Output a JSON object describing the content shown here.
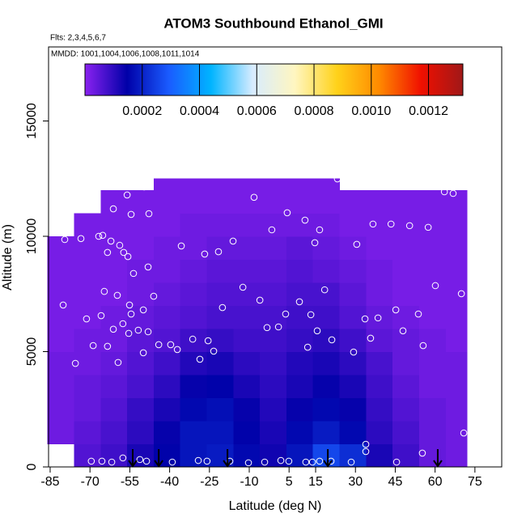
{
  "chart_data": {
    "type": "curtain",
    "title": "ATOM3 Southbound Ethanol_GMI",
    "subtitle": "Flts: 2,3,4,5,6,7",
    "annotation": "MMDD: 1001,1004,1006,1008,1011,1014",
    "x_label": "Latitude (deg N)",
    "y_label": "Altitude (m)",
    "xlim": [
      -85.6,
      85.1
    ],
    "ylim": [
      0,
      18210
    ],
    "xticks": [
      -85,
      -70,
      -55,
      -40,
      -25,
      -10,
      5,
      15,
      30,
      45,
      60,
      75
    ],
    "yticks": [
      0,
      5000,
      10000,
      15000
    ],
    "clim": [
      0,
      0.00132
    ],
    "cticks": [
      0.0002,
      0.0004,
      0.0006,
      0.0008,
      {
        "value": 0.001,
        "label": "0.0010"
      },
      0.0012
    ],
    "colormap": [
      "#8a22f0",
      "#0000a8",
      "#1a5cff",
      "#00b4ff",
      "#d8ecff",
      "#fff6c0",
      "#ffd21a",
      "#ff8a00",
      "#f01000",
      "#a01818"
    ],
    "lat_edges": [
      -86,
      -76,
      -66,
      -56,
      -46,
      -36,
      -26,
      -16,
      -6,
      4,
      14,
      24,
      34,
      44,
      54,
      64,
      72
    ],
    "alt_edges": [
      0,
      1000,
      2000,
      3000,
      4000,
      5000,
      6000,
      7000,
      8000,
      9000,
      10000,
      11000,
      12000,
      12500
    ],
    "z": [
      [
        null,
        6e-05,
        8e-05,
        0.00012,
        0.00015,
        0.00018,
        0.00019,
        0.00016,
        0.00013,
        0.00018,
        0.00026,
        0.00022,
        0.00012,
        8e-05,
        4e-05,
        3e-05
      ],
      [
        3e-05,
        5e-05,
        7e-05,
        0.0001,
        0.00014,
        0.00018,
        0.00018,
        0.00015,
        0.00012,
        0.00016,
        0.00019,
        0.00016,
        0.0001,
        7e-05,
        4e-05,
        3e-05
      ],
      [
        3e-05,
        4e-05,
        6e-05,
        9e-05,
        0.00012,
        0.00016,
        0.00017,
        0.00014,
        0.00011,
        0.00014,
        0.00016,
        0.00014,
        9e-05,
        6e-05,
        4e-05,
        3e-05
      ],
      [
        3e-05,
        4e-05,
        5e-05,
        7e-05,
        0.0001,
        0.00014,
        0.00015,
        0.00012,
        0.0001,
        0.00012,
        0.00014,
        0.00012,
        8e-05,
        5e-05,
        3e-05,
        3e-05
      ],
      [
        3e-05,
        3e-05,
        4e-05,
        6e-05,
        8e-05,
        0.00011,
        0.00012,
        0.0001,
        9e-05,
        0.00011,
        0.00012,
        0.0001,
        7e-05,
        4e-05,
        3e-05,
        3e-05
      ],
      [
        2e-05,
        3e-05,
        3e-05,
        5e-05,
        6e-05,
        8e-05,
        9e-05,
        8e-05,
        8e-05,
        9e-05,
        0.0001,
        8e-05,
        5e-05,
        4e-05,
        3e-05,
        2e-05
      ],
      [
        2e-05,
        2e-05,
        3e-05,
        4e-05,
        5e-05,
        6e-05,
        7e-05,
        7e-05,
        7e-05,
        8e-05,
        8e-05,
        6e-05,
        4e-05,
        3e-05,
        2e-05,
        2e-05
      ],
      [
        2e-05,
        2e-05,
        2e-05,
        3e-05,
        4e-05,
        5e-05,
        6e-05,
        6e-05,
        6e-05,
        7e-05,
        7e-05,
        5e-05,
        3e-05,
        2e-05,
        2e-05,
        2e-05
      ],
      [
        2e-05,
        2e-05,
        2e-05,
        3e-05,
        3e-05,
        4e-05,
        5e-05,
        5e-05,
        5e-05,
        6e-05,
        5e-05,
        4e-05,
        3e-05,
        2e-05,
        2e-05,
        2e-05
      ],
      [
        2e-05,
        2e-05,
        2e-05,
        2e-05,
        3e-05,
        3e-05,
        4e-05,
        4e-05,
        4e-05,
        5e-05,
        4e-05,
        3e-05,
        2e-05,
        2e-05,
        2e-05,
        2e-05
      ],
      [
        null,
        2e-05,
        2e-05,
        2e-05,
        2e-05,
        3e-05,
        3e-05,
        3e-05,
        3e-05,
        3e-05,
        3e-05,
        2e-05,
        2e-05,
        2e-05,
        2e-05,
        2e-05
      ],
      [
        null,
        null,
        2e-05,
        2e-05,
        2e-05,
        2e-05,
        2e-05,
        2e-05,
        2e-05,
        2e-05,
        2e-05,
        2e-05,
        2e-05,
        2e-05,
        2e-05,
        2e-05
      ],
      [
        null,
        null,
        null,
        null,
        2e-05,
        2e-05,
        2e-05,
        2e-05,
        2e-05,
        2e-05,
        2e-05,
        null,
        null,
        null,
        null,
        null
      ]
    ],
    "points": {
      "x": [
        -79.5,
        -73.4,
        -66.7,
        -65.2,
        -62.1,
        -63.4,
        -58.8,
        -57.3,
        -55.7,
        -53.6,
        -48.1,
        -61.2,
        -54.5,
        -47.8,
        -56.0,
        -49.6,
        -35.6,
        -26.8,
        -21.6,
        -16.1,
        -8.2,
        -1.5,
        4.3,
        11.0,
        14.7,
        16.5,
        23.2,
        30.5,
        36.6,
        43.4,
        50.4,
        57.4,
        63.5,
        66.8,
        60.1,
        69.9,
        -80.1,
        -71.3,
        -65.8,
        -64.6,
        -59.7,
        -54.5,
        -55.1,
        -49.9,
        -46.0,
        -55.4,
        -51.8,
        -48.1,
        -44.1,
        -49.9,
        -37.1,
        -31.3,
        -25.5,
        -23.4,
        -28.6,
        -68.8,
        -63.4,
        -59.4,
        -75.5,
        -61.2,
        -57.6,
        -20.1,
        -12.4,
        -6.0,
        -3.3,
        1.0,
        3.7,
        8.9,
        13.2,
        15.6,
        12.0,
        18.4,
        21.1,
        29.3,
        33.6,
        35.7,
        38.5,
        45.2,
        47.9,
        53.7,
        55.5,
        -39.6,
        -69.5,
        -65.5,
        -61.8,
        -57.6,
        -51.2,
        -48.7,
        -39.0,
        -29.2,
        -25.9,
        -17.3,
        -10.3,
        -4.2,
        1.9,
        4.9,
        11.3,
        13.8,
        16.5,
        20.8,
        28.4,
        33.9,
        33.9,
        45.5,
        55.2,
        70.8
      ],
      "y": [
        9860,
        9900,
        10000,
        10040,
        9790,
        9300,
        9610,
        9300,
        9120,
        8390,
        8670,
        11190,
        10950,
        10980,
        11790,
        12140,
        9580,
        9230,
        9330,
        9790,
        11690,
        10280,
        11020,
        10700,
        9720,
        10280,
        12490,
        9650,
        10530,
        10530,
        10460,
        10390,
        11930,
        11860,
        7860,
        7510,
        7020,
        6420,
        6560,
        7610,
        7440,
        6630,
        7020,
        6810,
        7400,
        5790,
        5930,
        5860,
        5300,
        4950,
        5090,
        5540,
        5470,
        5020,
        4670,
        5260,
        5230,
        4530,
        4490,
        5970,
        6210,
        6910,
        7790,
        7230,
        6040,
        6070,
        6630,
        7160,
        6600,
        5900,
        5190,
        7680,
        5510,
        4980,
        6420,
        5580,
        6460,
        6810,
        5900,
        6630,
        5260,
        5300,
        250,
        250,
        210,
        390,
        320,
        250,
        210,
        280,
        250,
        250,
        180,
        210,
        280,
        250,
        210,
        210,
        250,
        250,
        210,
        980,
        670,
        210,
        600,
        1470
      ]
    },
    "arrows_x": [
      -53.9,
      -44.1,
      -18.2,
      19.6,
      61.0
    ]
  }
}
